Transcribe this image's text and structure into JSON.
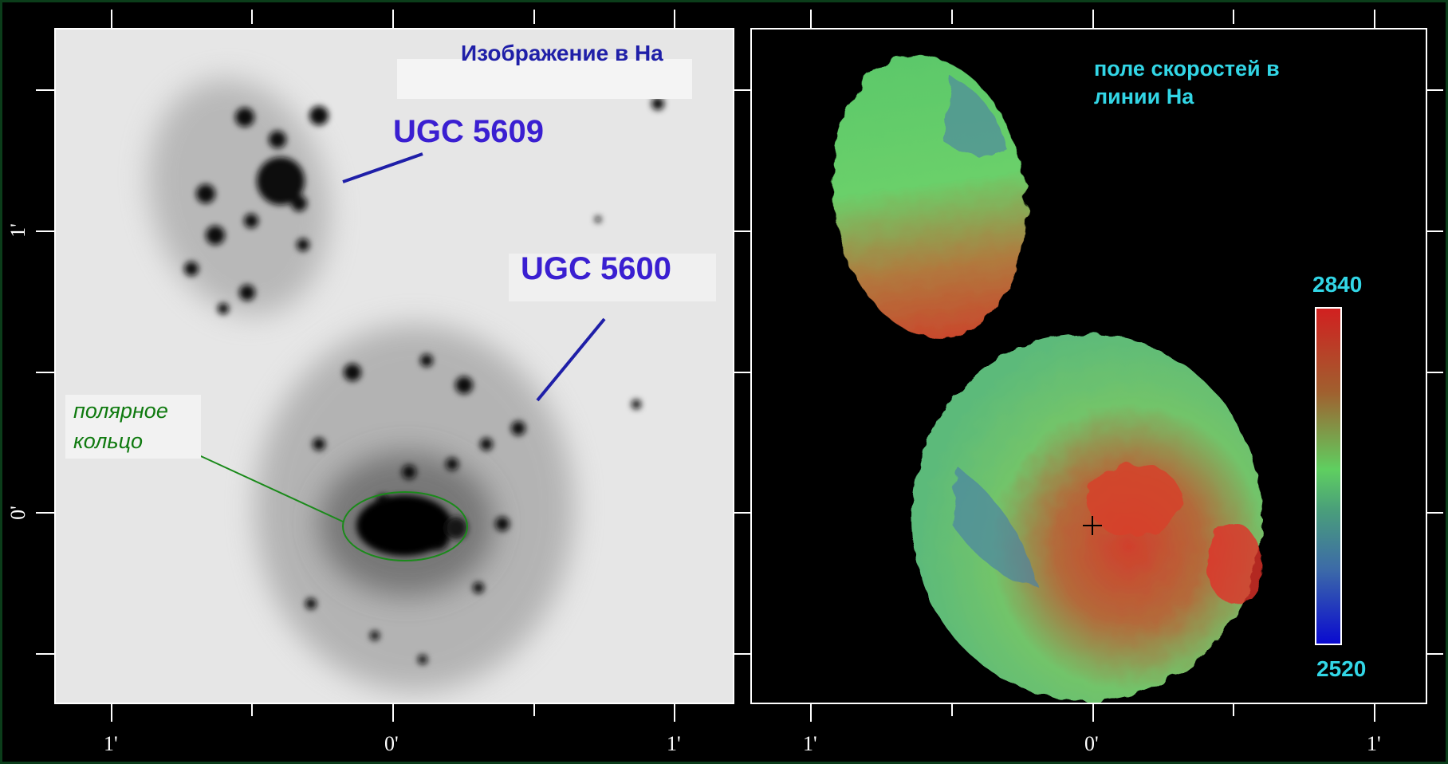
{
  "left_panel": {
    "title": "Изображение в Ha",
    "label_ugc5609": "UGC 5609",
    "label_ugc5600": "UGC 5600",
    "polar_ring_line1": "полярное",
    "polar_ring_line2": "кольцо"
  },
  "right_panel": {
    "title_line1": "поле скоростей в",
    "title_line2": "линии Ha",
    "colorbar": {
      "max": "2840",
      "min": "2520"
    }
  },
  "axes": {
    "left_x_ticks": [
      "1'",
      "0'",
      "1'"
    ],
    "right_x_ticks": [
      "1'",
      "0'",
      "1'"
    ],
    "y_ticks": [
      "1'",
      "0'"
    ]
  },
  "colors": {
    "label_blue": "#3a1fd1",
    "polar_green": "#0f7a0f",
    "cyan_text": "#32d6e6"
  }
}
